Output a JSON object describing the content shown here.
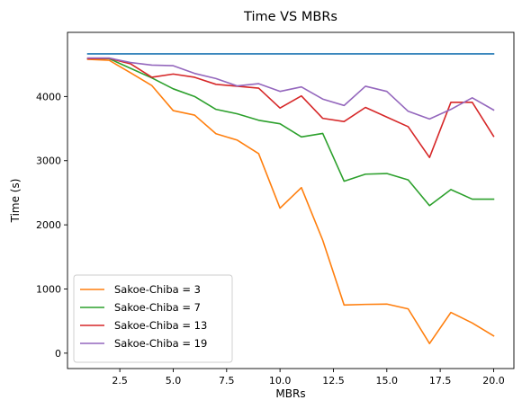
{
  "chart_data": {
    "type": "line",
    "title": "Time VS MBRs",
    "xlabel": "MBRs",
    "ylabel": "Time (s)",
    "xlim": [
      0.05,
      20.95
    ],
    "ylim": [
      -240,
      5000
    ],
    "xticks": [
      2.5,
      5.0,
      7.5,
      10.0,
      12.5,
      15.0,
      17.5,
      20.0
    ],
    "xtick_labels": [
      "2.5",
      "5.0",
      "7.5",
      "10.0",
      "12.5",
      "15.0",
      "17.5",
      "20.0"
    ],
    "yticks": [
      0,
      1000,
      2000,
      3000,
      4000
    ],
    "ytick_labels": [
      "0",
      "1000",
      "2000",
      "3000",
      "4000"
    ],
    "grid": false,
    "legend_position": "lower-left",
    "x": [
      1,
      2,
      3,
      4,
      5,
      6,
      7,
      8,
      9,
      10,
      11,
      12,
      13,
      14,
      15,
      16,
      17,
      18,
      19,
      20
    ],
    "series": [
      {
        "name": "",
        "in_legend": false,
        "color": "#1f77b4",
        "values": [
          4665,
          4665,
          4665,
          4665,
          4665,
          4665,
          4665,
          4665,
          4665,
          4665,
          4665,
          4665,
          4665,
          4665,
          4665,
          4665,
          4665,
          4665,
          4665,
          4665
        ]
      },
      {
        "name": "Sakoe-Chiba = 3",
        "in_legend": true,
        "color": "#ff7f0e",
        "values": [
          4580,
          4565,
          4370,
          4170,
          3780,
          3710,
          3420,
          3320,
          3110,
          2260,
          2580,
          1760,
          750,
          760,
          765,
          690,
          150,
          635,
          470,
          270
        ]
      },
      {
        "name": "Sakoe-Chiba = 7",
        "in_legend": true,
        "color": "#2ca02c",
        "values": [
          4590,
          4590,
          4440,
          4290,
          4120,
          4000,
          3800,
          3730,
          3630,
          3575,
          3370,
          3425,
          2680,
          2790,
          2800,
          2700,
          2300,
          2550,
          2400,
          2400
        ]
      },
      {
        "name": "Sakoe-Chiba = 13",
        "in_legend": true,
        "color": "#d62728",
        "values": [
          4590,
          4595,
          4510,
          4300,
          4350,
          4300,
          4190,
          4160,
          4130,
          3820,
          4010,
          3660,
          3610,
          3830,
          3680,
          3530,
          3050,
          3910,
          3910,
          3380
        ]
      },
      {
        "name": "Sakoe-Chiba = 19",
        "in_legend": true,
        "color": "#9467bd",
        "values": [
          4600,
          4600,
          4530,
          4490,
          4480,
          4360,
          4280,
          4165,
          4200,
          4080,
          4150,
          3960,
          3860,
          4160,
          4080,
          3770,
          3650,
          3800,
          3980,
          3790
        ]
      }
    ]
  }
}
